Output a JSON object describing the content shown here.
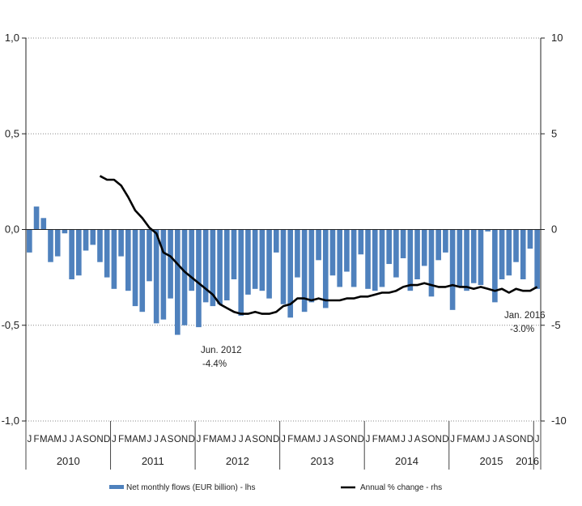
{
  "chart_data": {
    "type": "bar",
    "title": "",
    "y_left": {
      "ylim": [
        -1.0,
        1.0
      ],
      "ticks": [
        "1,0",
        "0,5",
        "0,0",
        "-0,5",
        "-1,0"
      ],
      "tick_values": [
        1.0,
        0.5,
        0.0,
        -0.5,
        -1.0
      ]
    },
    "y_right": {
      "ylim": [
        -10,
        10
      ],
      "ticks": [
        "10",
        "5",
        "0",
        "-5",
        "-10"
      ],
      "tick_values": [
        10,
        5,
        0,
        -5,
        -10
      ]
    },
    "month_labels": [
      "J",
      "F",
      "M",
      "A",
      "M",
      "J",
      "J",
      "A",
      "S",
      "O",
      "N",
      "D",
      "J",
      "F",
      "M",
      "A",
      "M",
      "J",
      "J",
      "A",
      "S",
      "O",
      "N",
      "D",
      "J",
      "F",
      "M",
      "A",
      "M",
      "J",
      "J",
      "A",
      "S",
      "O",
      "N",
      "D",
      "J",
      "F",
      "M",
      "A",
      "M",
      "J",
      "J",
      "A",
      "S",
      "O",
      "N",
      "D",
      "J",
      "F",
      "M",
      "A",
      "M",
      "J",
      "J",
      "A",
      "S",
      "O",
      "N",
      "D",
      "J",
      "F",
      "M",
      "A",
      "M",
      "J",
      "J",
      "A",
      "S",
      "O",
      "N",
      "D",
      "J"
    ],
    "years": [
      "2010",
      "2011",
      "2012",
      "2013",
      "2014",
      "2015",
      "2016"
    ],
    "series": [
      {
        "name": "Net monthly flows (EUR billion) - lhs",
        "axis": "left",
        "color": "#4f81bd",
        "values": [
          -0.12,
          0.12,
          0.06,
          -0.17,
          -0.14,
          -0.02,
          -0.26,
          -0.24,
          -0.11,
          -0.08,
          -0.17,
          -0.25,
          -0.31,
          -0.14,
          -0.32,
          -0.4,
          -0.43,
          -0.27,
          -0.49,
          -0.47,
          -0.36,
          -0.55,
          -0.5,
          -0.32,
          -0.51,
          -0.38,
          -0.4,
          -0.39,
          -0.37,
          -0.26,
          -0.45,
          -0.34,
          -0.31,
          -0.32,
          -0.36,
          -0.12,
          -0.39,
          -0.46,
          -0.25,
          -0.43,
          -0.38,
          -0.16,
          -0.41,
          -0.24,
          -0.3,
          -0.22,
          -0.3,
          -0.13,
          -0.31,
          -0.32,
          -0.3,
          -0.18,
          -0.25,
          -0.15,
          -0.32,
          -0.26,
          -0.19,
          -0.35,
          -0.16,
          -0.12,
          -0.42,
          -0.3,
          -0.32,
          -0.28,
          -0.29,
          -0.01,
          -0.38,
          -0.26,
          -0.24,
          -0.17,
          -0.26,
          -0.1,
          -0.31
        ]
      },
      {
        "name": "Annual % change - rhs",
        "axis": "right",
        "color": "#000000",
        "values": [
          2.8,
          2.6,
          2.6,
          2.3,
          1.7,
          1.0,
          0.6,
          0.1,
          -0.2,
          -1.2,
          -1.4,
          -1.8,
          -2.2,
          -2.5,
          -2.8,
          -3.1,
          -3.4,
          -3.9,
          -4.1,
          -4.3,
          -4.4,
          -4.4,
          -4.3,
          -4.4,
          -4.4,
          -4.3,
          -4.0,
          -3.9,
          -3.6,
          -3.6,
          -3.7,
          -3.6,
          -3.7,
          -3.7,
          -3.7,
          -3.6,
          -3.6,
          -3.5,
          -3.5,
          -3.4,
          -3.3,
          -3.3,
          -3.2,
          -3.0,
          -2.9,
          -2.9,
          -2.8,
          -2.9,
          -3.0,
          -3.0,
          -2.9,
          -3.0,
          -3.0,
          -3.1,
          -3.0,
          -3.1,
          -3.2,
          -3.1,
          -3.3,
          -3.1,
          -3.2,
          -3.2,
          -3.0
        ]
      }
    ],
    "annotations": [
      {
        "line1": "Jun. 2012",
        "line2": "-4.4%"
      },
      {
        "line1": "Jan. 2016",
        "line2": "-3.0%"
      }
    ],
    "grid": true,
    "legend_position": "bottom"
  }
}
